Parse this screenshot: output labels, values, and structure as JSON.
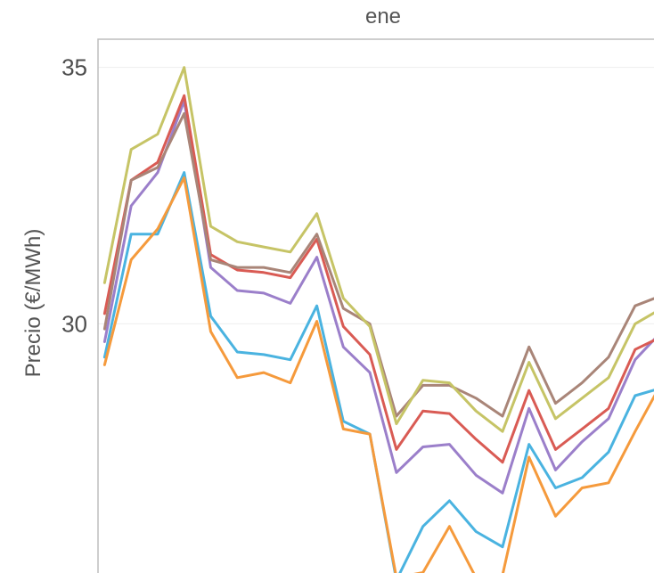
{
  "chart_data": {
    "type": "line",
    "title": "ene",
    "ylabel": "Precio (€/MWh)",
    "xlabel": "",
    "ylim": [
      24.95,
      35.55
    ],
    "xlim": [
      0.75,
      22.25
    ],
    "yticks": [
      30,
      35
    ],
    "ytick_labels": [
      "30",
      "35"
    ],
    "grid": true,
    "legend": "none",
    "x": [
      1,
      2,
      3,
      4,
      5,
      6,
      7,
      8,
      9,
      10,
      11,
      12,
      13,
      14,
      15,
      16,
      17,
      18,
      19,
      20,
      21,
      22
    ],
    "series": [
      {
        "color": "#4ab3e0",
        "values": [
          29.35,
          31.75,
          31.75,
          32.95,
          30.15,
          29.45,
          29.4,
          29.3,
          30.35,
          28.1,
          27.85,
          25.0,
          26.05,
          26.55,
          25.95,
          25.65,
          27.65,
          26.8,
          27.0,
          27.5,
          28.6,
          28.75
        ]
      },
      {
        "color": "#f59a3c",
        "values": [
          29.2,
          31.25,
          31.85,
          32.85,
          29.85,
          28.95,
          29.05,
          28.85,
          30.05,
          27.95,
          27.85,
          25.05,
          25.15,
          26.05,
          25.05,
          25.1,
          27.4,
          26.25,
          26.8,
          26.9,
          27.9,
          28.85
        ]
      },
      {
        "color": "#9b7fca",
        "values": [
          29.65,
          32.3,
          32.95,
          34.35,
          31.1,
          30.65,
          30.6,
          30.4,
          31.3,
          29.55,
          29.05,
          27.1,
          27.6,
          27.65,
          27.05,
          26.7,
          28.35,
          27.15,
          27.7,
          28.15,
          29.3,
          29.85
        ]
      },
      {
        "color": "#d95b54",
        "values": [
          30.2,
          32.8,
          33.15,
          34.45,
          31.35,
          31.05,
          31.0,
          30.9,
          31.65,
          29.95,
          29.4,
          27.55,
          28.3,
          28.25,
          27.75,
          27.3,
          28.7,
          27.55,
          27.95,
          28.35,
          29.5,
          29.75
        ]
      },
      {
        "color": "#a98578",
        "values": [
          29.9,
          32.8,
          33.05,
          34.1,
          31.25,
          31.1,
          31.1,
          31.0,
          31.75,
          30.3,
          30.0,
          28.2,
          28.8,
          28.8,
          28.55,
          28.2,
          29.55,
          28.45,
          28.85,
          29.35,
          30.35,
          30.55
        ]
      },
      {
        "color": "#c6c466",
        "values": [
          30.8,
          33.4,
          33.7,
          35.0,
          31.9,
          31.6,
          31.5,
          31.4,
          32.15,
          30.5,
          29.95,
          28.05,
          28.9,
          28.85,
          28.3,
          27.9,
          29.25,
          28.15,
          28.55,
          28.95,
          30.0,
          30.3
        ]
      }
    ]
  }
}
